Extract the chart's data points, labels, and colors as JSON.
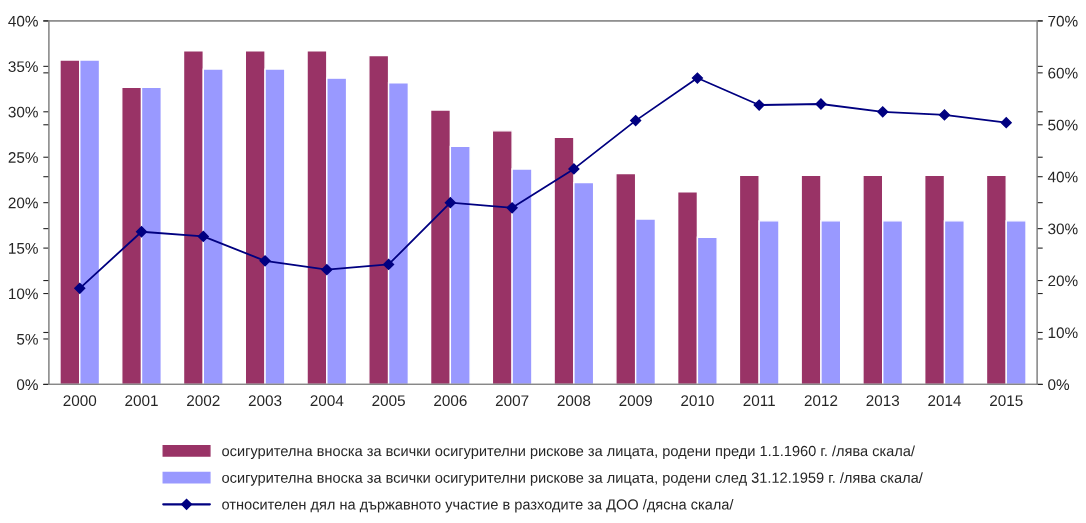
{
  "chart_data": {
    "type": "bar",
    "categories": [
      "2000",
      "2001",
      "2002",
      "2003",
      "2004",
      "2005",
      "2006",
      "2007",
      "2008",
      "2009",
      "2010",
      "2011",
      "2012",
      "2013",
      "2014",
      "2015"
    ],
    "series": [
      {
        "name": "осигурителна вноска за всички осигурителни рискове за лицата, родени преди 1.1.1960 г. /лява скала/",
        "color": "#993366",
        "values": [
          35.7,
          32.7,
          36.7,
          36.7,
          36.7,
          36.2,
          30.2,
          27.9,
          27.2,
          23.2,
          21.2,
          23,
          23,
          23,
          23,
          23
        ]
      },
      {
        "name": "осигурителна вноска за всички осигурителни рискове за лицата, родени след 31.12.1959 г. /лява скала/",
        "color": "#9999ff",
        "values": [
          35.7,
          32.7,
          34.7,
          34.7,
          33.7,
          33.2,
          26.2,
          23.7,
          22.2,
          18.2,
          16.2,
          18,
          18,
          18,
          18,
          18
        ]
      },
      {
        "name": "относителен дял на държавното участие в разходите за ДОО /дясна скала/",
        "type": "line",
        "axis": "y2",
        "color": "#000080",
        "marker": "diamond",
        "values": [
          18.5,
          29.4,
          28.5,
          23.8,
          22.1,
          23.1,
          35.0,
          34.0,
          41.5,
          50.8,
          59.0,
          53.8,
          54.0,
          52.5,
          51.9,
          50.4
        ]
      }
    ],
    "ylim": [
      0,
      40
    ],
    "yticks": [
      {
        "value": 0,
        "label": "0%"
      },
      {
        "value": 5,
        "label": "5%"
      },
      {
        "value": 10,
        "label": "10%"
      },
      {
        "value": 15,
        "label": "15%"
      },
      {
        "value": 20,
        "label": "20%"
      },
      {
        "value": 25,
        "label": "25%"
      },
      {
        "value": 30,
        "label": "30%"
      },
      {
        "value": 35,
        "label": "35%"
      },
      {
        "value": 40,
        "label": "40%"
      }
    ],
    "y2lim": [
      0,
      70
    ],
    "y2ticks": [
      {
        "value": 0,
        "label": "0%"
      },
      {
        "value": 10,
        "label": "10%"
      },
      {
        "value": 20,
        "label": "20%"
      },
      {
        "value": 30,
        "label": "30%"
      },
      {
        "value": 40,
        "label": "40%"
      },
      {
        "value": 50,
        "label": "50%"
      },
      {
        "value": 60,
        "label": "60%"
      },
      {
        "value": 70,
        "label": "70%"
      }
    ],
    "legend": "bottom",
    "grid": false
  }
}
